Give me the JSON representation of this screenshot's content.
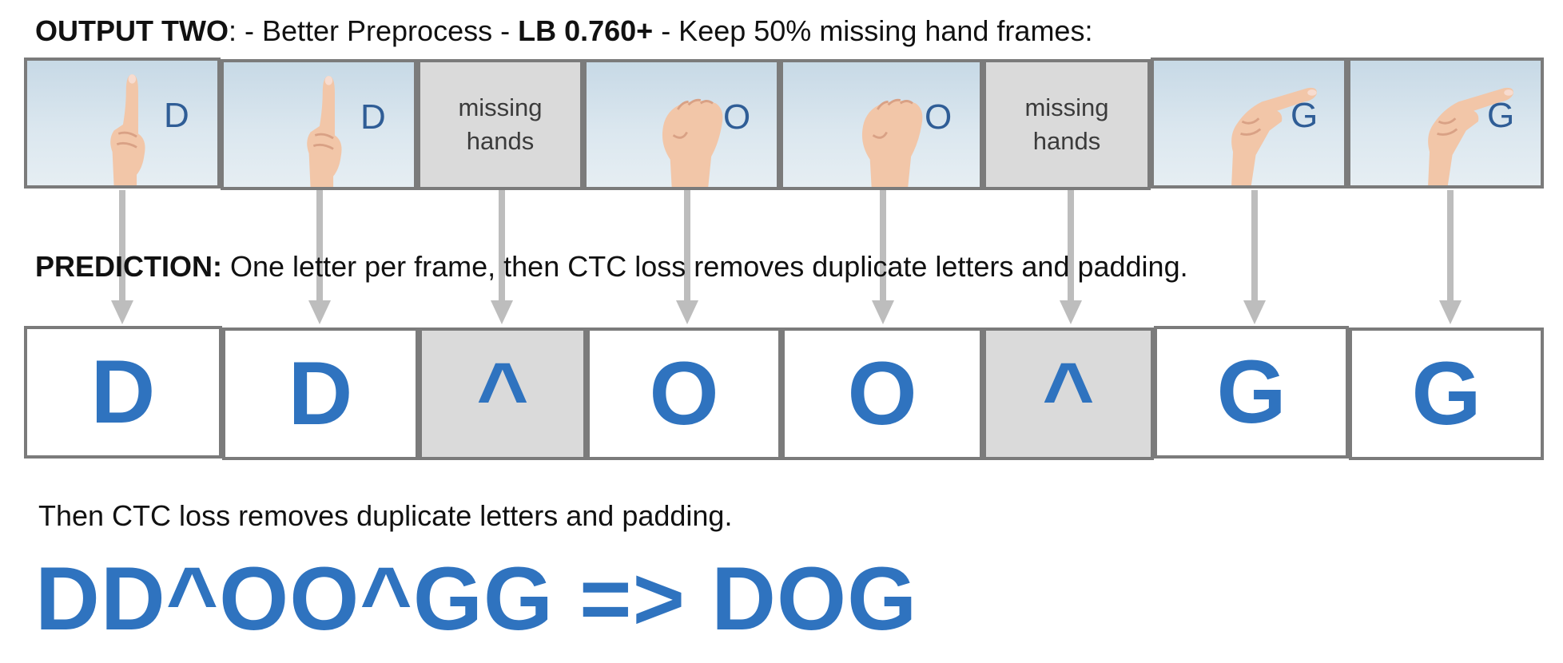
{
  "header": {
    "output_label": "OUTPUT TWO",
    "sep1": ": - Better Preprocess - ",
    "lb_label": "LB 0.760+",
    "tail": " - Keep 50% missing hand frames:"
  },
  "frames": [
    {
      "type": "image",
      "letter": "D",
      "hand": "index-up"
    },
    {
      "type": "image",
      "letter": "D",
      "hand": "index-up"
    },
    {
      "type": "missing",
      "label": "missing\nhands"
    },
    {
      "type": "image",
      "letter": "O",
      "hand": "o-shape"
    },
    {
      "type": "image",
      "letter": "O",
      "hand": "o-shape"
    },
    {
      "type": "missing",
      "label": "missing\nhands"
    },
    {
      "type": "image",
      "letter": "G",
      "hand": "g-point"
    },
    {
      "type": "image",
      "letter": "G",
      "hand": "g-point"
    }
  ],
  "prediction": {
    "label": "PREDICTION:",
    "text": " One letter per frame, then CTC loss removes duplicate letters and padding."
  },
  "predicted_letters": [
    "D",
    "D",
    "^",
    "O",
    "O",
    "^",
    "G",
    "G"
  ],
  "then_text": "Then CTC loss removes duplicate letters and padding.",
  "final_result": "DD^OO^GG => DOG",
  "colors": {
    "accent": "#2f73bf",
    "frame_border": "#7b7b7b",
    "missing_fill": "#dadada",
    "arrow": "#bdbdbd"
  }
}
